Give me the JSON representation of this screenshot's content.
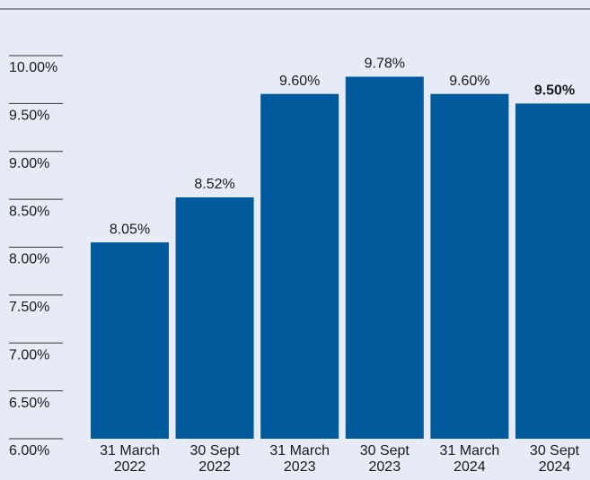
{
  "chart_data": {
    "type": "bar",
    "categories": [
      [
        "31 March",
        "2022"
      ],
      [
        "30 Sept",
        "2022"
      ],
      [
        "31 March",
        "2023"
      ],
      [
        "30 Sept",
        "2023"
      ],
      [
        "31 March",
        "2024"
      ],
      [
        "30 Sept",
        "2024"
      ]
    ],
    "values": [
      8.05,
      8.52,
      9.6,
      9.78,
      9.6,
      9.5
    ],
    "value_labels": [
      "8.05%",
      "8.52%",
      "9.60%",
      "9.78%",
      "9.60%",
      "9.50%"
    ],
    "color": "#005a9c",
    "ylim": [
      6,
      10
    ],
    "yticks": [
      {
        "value": 6,
        "label": "6.00%"
      },
      {
        "value": 6.5,
        "label": "6.50%"
      },
      {
        "value": 7,
        "label": "7.00%"
      },
      {
        "value": 7.5,
        "label": "7.50%"
      },
      {
        "value": 8,
        "label": "8.00%"
      },
      {
        "value": 8.5,
        "label": "8.50%"
      },
      {
        "value": 9,
        "label": "9.00%"
      },
      {
        "value": 9.5,
        "label": "9.50%"
      },
      {
        "value": 10,
        "label": "10.00%"
      }
    ]
  }
}
